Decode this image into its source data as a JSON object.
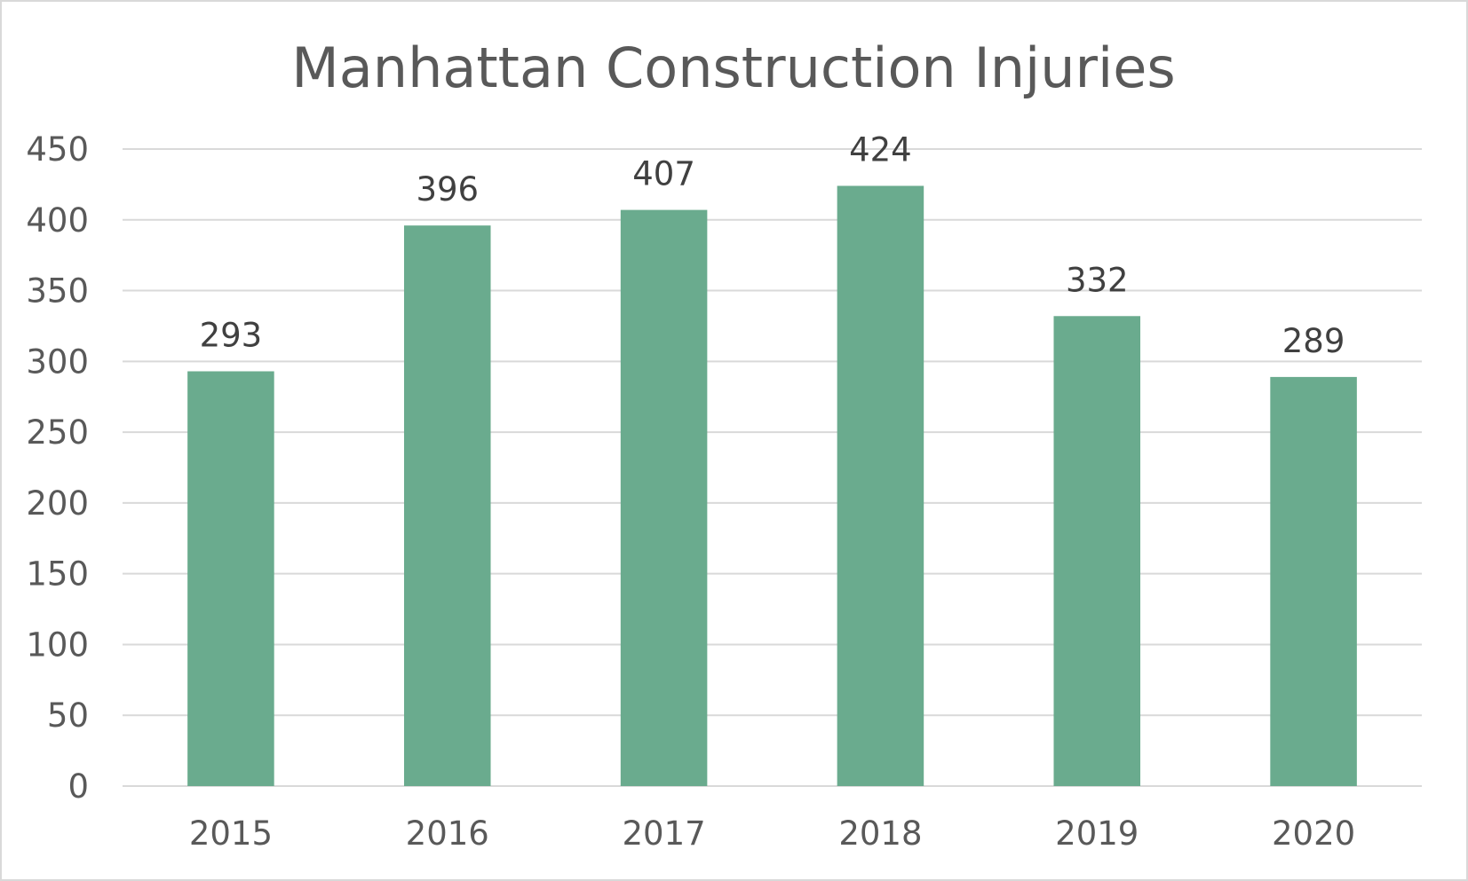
{
  "chart_data": {
    "type": "bar",
    "title": "Manhattan Construction Injuries",
    "categories": [
      "2015",
      "2016",
      "2017",
      "2018",
      "2019",
      "2020"
    ],
    "values": [
      293,
      396,
      407,
      424,
      332,
      289
    ],
    "data_labels": [
      "293",
      "396",
      "407",
      "424",
      "332",
      "289"
    ],
    "y_ticks": [
      "0",
      "50",
      "100",
      "150",
      "200",
      "250",
      "300",
      "350",
      "400",
      "450"
    ],
    "ylim": [
      0,
      450
    ],
    "grid": true,
    "legend": "none",
    "colors": {
      "bar": "#6aab8e",
      "grid": "#d9d9d9",
      "text": "#595959",
      "label": "#404040"
    }
  }
}
